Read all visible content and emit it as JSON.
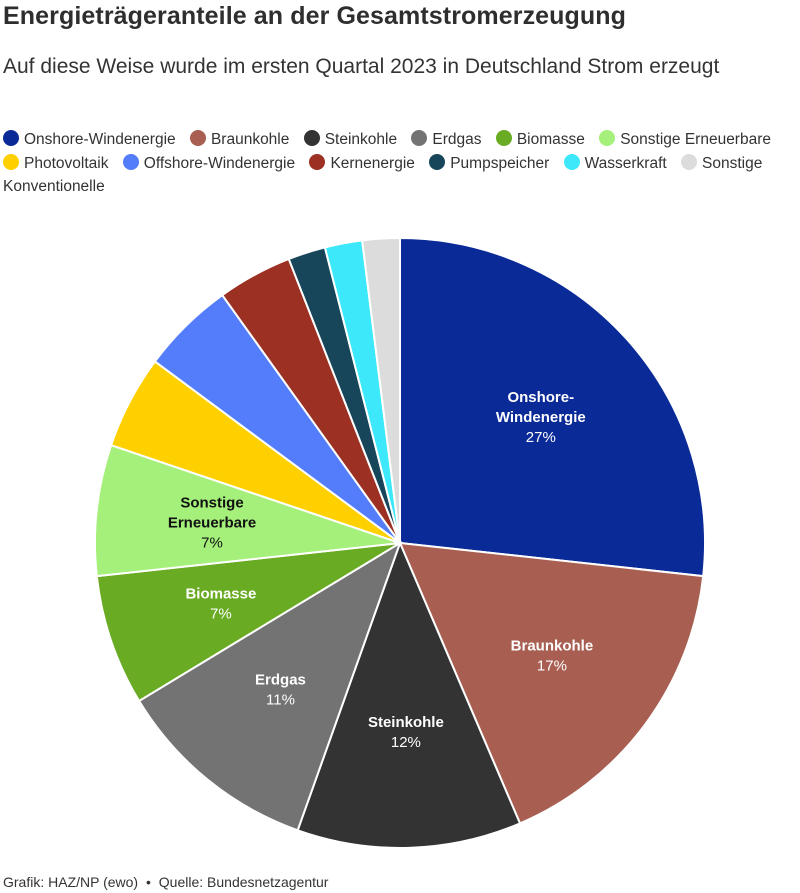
{
  "header": {
    "title": "Energieträgeranteile an der Gesamtstromerzeugung",
    "subtitle": "Auf diese Weise wurde im ersten Quartal 2023 in Deutschland Strom erzeugt"
  },
  "footer": {
    "credit": "Grafik: HAZ/NP (ewo)",
    "separator": "•",
    "source": "Quelle: Bundesnetzagentur"
  },
  "chart_data": {
    "type": "pie",
    "legend_position": "top",
    "slices": [
      {
        "name": "Onshore-Windenergie",
        "value": 27,
        "label_lines": [
          "Onshore-",
          "Windenergie"
        ],
        "pct": "27%",
        "color": "#0a2a97",
        "text_color": "#ffffff"
      },
      {
        "name": "Braunkohle",
        "value": 17,
        "label_lines": [
          "Braunkohle"
        ],
        "pct": "17%",
        "color": "#a85f52",
        "text_color": "#ffffff"
      },
      {
        "name": "Steinkohle",
        "value": 12,
        "label_lines": [
          "Steinkohle"
        ],
        "pct": "12%",
        "color": "#333333",
        "text_color": "#ffffff"
      },
      {
        "name": "Erdgas",
        "value": 11,
        "label_lines": [
          "Erdgas"
        ],
        "pct": "11%",
        "color": "#737373",
        "text_color": "#ffffff"
      },
      {
        "name": "Biomasse",
        "value": 7,
        "label_lines": [
          "Biomasse"
        ],
        "pct": "7%",
        "color": "#6aab24",
        "text_color": "#ffffff"
      },
      {
        "name": "Sonstige Erneuerbare",
        "value": 7,
        "label_lines": [
          "Sonstige",
          "Erneuerbare"
        ],
        "pct": "7%",
        "color": "#a4f07a",
        "text_color": "#111111"
      },
      {
        "name": "Photovoltaik",
        "value": 5,
        "label_lines": [],
        "pct": "",
        "color": "#ffd000",
        "text_color": "#111111"
      },
      {
        "name": "Offshore-Windenergie",
        "value": 5,
        "label_lines": [],
        "pct": "",
        "color": "#537dfa",
        "text_color": "#ffffff"
      },
      {
        "name": "Kernenergie",
        "value": 4,
        "label_lines": [],
        "pct": "",
        "color": "#9c3022",
        "text_color": "#ffffff"
      },
      {
        "name": "Pumpspeicher",
        "value": 2,
        "label_lines": [],
        "pct": "",
        "color": "#17465a",
        "text_color": "#ffffff"
      },
      {
        "name": "Wasserkraft",
        "value": 2,
        "label_lines": [],
        "pct": "",
        "color": "#3ee8fb",
        "text_color": "#111111"
      },
      {
        "name": "Sonstige Konventionelle",
        "value": 2,
        "label_lines": [],
        "pct": "",
        "color": "#dcdcdc",
        "text_color": "#111111"
      }
    ]
  }
}
